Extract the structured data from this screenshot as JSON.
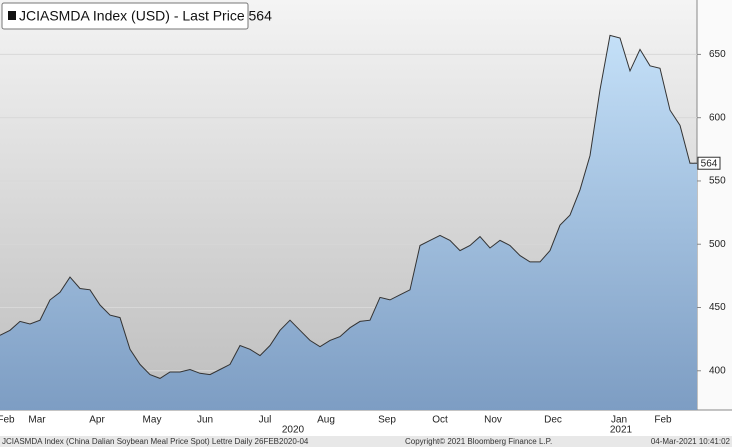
{
  "chart_data": {
    "type": "area",
    "title": "JCIASMDA Index (USD) - Last Price 564",
    "footer_left": "JCIASMDA Index (China Dalian Soybean Meal Price Spot) Lettre  Daily 26FEB2020-04",
    "footer_center": "Copyright© 2021 Bloomberg Finance L.P.",
    "footer_right": "04-Mar-2021 10:41:02",
    "last_price": 564,
    "x": [
      0,
      1,
      2,
      3,
      4,
      5,
      6,
      7,
      8,
      9,
      10,
      11,
      12,
      13,
      14,
      15,
      16,
      17,
      18,
      19,
      20,
      21,
      22,
      23,
      24,
      25,
      26,
      27,
      28,
      29,
      30,
      31,
      32,
      33,
      34,
      35,
      36,
      37,
      38,
      39,
      40,
      41,
      42,
      43,
      44,
      45,
      46,
      47,
      48,
      49,
      50,
      51,
      52,
      53,
      54,
      55,
      56,
      57,
      58,
      59,
      60,
      61,
      62,
      63,
      64,
      65,
      66,
      67,
      68,
      69
    ],
    "values": [
      428,
      432,
      439,
      437,
      440,
      456,
      462,
      474,
      465,
      464,
      452,
      444,
      442,
      417,
      405,
      397,
      394,
      399,
      399,
      401,
      398,
      397,
      401,
      405,
      420,
      417,
      412,
      420,
      432,
      440,
      432,
      424,
      419,
      424,
      427,
      434,
      439,
      440,
      458,
      456,
      460,
      464,
      499,
      503,
      507,
      503,
      495,
      499,
      506,
      497,
      503,
      499,
      491,
      486,
      486,
      495,
      515,
      523,
      543,
      570,
      622,
      665,
      663,
      637,
      654,
      641,
      639,
      606,
      594,
      564
    ],
    "xlim": [
      0,
      69.7
    ],
    "xticks": [
      {
        "value": 0.6,
        "label": "Feb"
      },
      {
        "value": 3.7,
        "label": "Mar"
      },
      {
        "value": 9.7,
        "label": "Apr"
      },
      {
        "value": 15.2,
        "label": "May"
      },
      {
        "value": 20.5,
        "label": "Jun"
      },
      {
        "value": 26.5,
        "label": "Jul"
      },
      {
        "value": 32.6,
        "label": "Aug"
      },
      {
        "value": 38.7,
        "label": "Sep"
      },
      {
        "value": 44.0,
        "label": "Oct"
      },
      {
        "value": 49.3,
        "label": "Nov"
      },
      {
        "value": 55.3,
        "label": "Dec"
      },
      {
        "value": 61.9,
        "label": "Jan"
      },
      {
        "value": 66.3,
        "label": "Feb"
      }
    ],
    "year_ticks": [
      {
        "value": 29.3,
        "label": "2020"
      },
      {
        "value": 62.1,
        "label": "2021"
      }
    ],
    "ylim": [
      369,
      693
    ],
    "yticks": [
      400,
      450,
      500,
      550,
      600,
      650
    ],
    "grid": true,
    "line_color": "#333333",
    "fill_top": "#c4e0f8",
    "fill_bottom": "#7d9dc3"
  }
}
